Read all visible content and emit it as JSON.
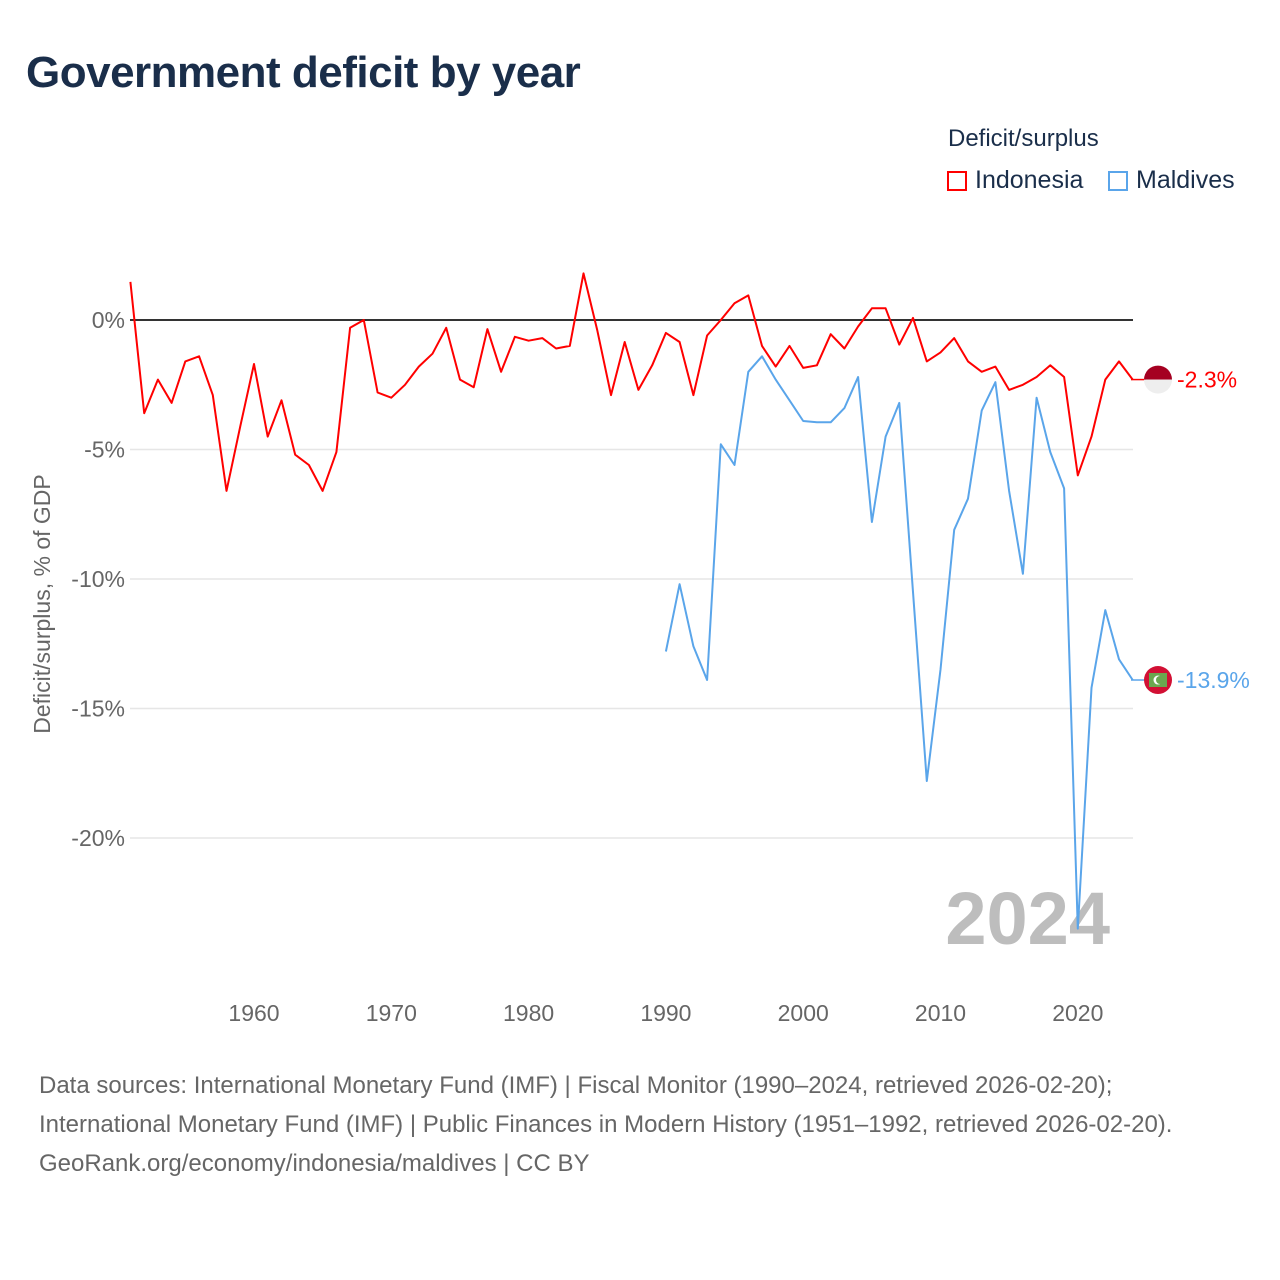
{
  "title": "Government deficit by year",
  "legend": {
    "title": "Deficit/surplus",
    "items": [
      {
        "name": "Indonesia",
        "color": "#ff0000"
      },
      {
        "name": "Maldives",
        "color": "#5aa5ea"
      }
    ]
  },
  "chart_data": {
    "type": "line",
    "title": "Government deficit by year",
    "xlabel": "",
    "ylabel": "Deficit/surplus, % of GDP",
    "xlim": [
      1951,
      2024
    ],
    "ylim": [
      -24,
      2
    ],
    "grid": true,
    "legend_placement": "top-right",
    "x_ticks": [
      1960,
      1970,
      1980,
      1990,
      2000,
      2010,
      2020
    ],
    "y_ticks": [
      {
        "v": 0,
        "label": "0%"
      },
      {
        "v": -5,
        "label": "-5%"
      },
      {
        "v": -10,
        "label": "-10%"
      },
      {
        "v": -15,
        "label": "-15%"
      },
      {
        "v": -20,
        "label": "-20%"
      }
    ],
    "year_watermark": "2024",
    "series": [
      {
        "name": "Indonesia",
        "color": "#ff0000",
        "end_label": "-2.3%",
        "start_year": 1951,
        "values": [
          1.47,
          -3.6,
          -2.3,
          -3.2,
          -1.6,
          -1.4,
          -2.9,
          -6.6,
          -4.1,
          -1.7,
          -4.5,
          -3.1,
          -5.2,
          -5.6,
          -6.6,
          -5.1,
          -0.3,
          0,
          -2.8,
          -3.0,
          -2.5,
          -1.8,
          -1.3,
          -0.3,
          -2.3,
          -2.6,
          -0.35,
          -2.0,
          -0.65,
          -0.8,
          -0.7,
          -1.1,
          -1.0,
          1.8,
          -0.4,
          -2.9,
          -0.85,
          -2.7,
          -1.75,
          -0.5,
          -0.85,
          -2.9,
          -0.6,
          0.0,
          0.65,
          0.95,
          -1.0,
          -1.8,
          -1.0,
          -1.85,
          -1.75,
          -0.55,
          -1.1,
          -0.25,
          0.45,
          0.45,
          -0.95,
          0.08,
          -1.6,
          -1.25,
          -0.7,
          -1.6,
          -2.0,
          -1.8,
          -2.7,
          -2.5,
          -2.2,
          -1.75,
          -2.2,
          -6.0,
          -4.5,
          -2.3,
          -1.6,
          -2.3
        ]
      },
      {
        "name": "Maldives",
        "color": "#5aa5ea",
        "end_label": "-13.9%",
        "start_year": 1990,
        "values": [
          -12.8,
          -10.2,
          -12.6,
          -13.9,
          -4.8,
          -5.6,
          -2.0,
          -1.4,
          -2.3,
          -3.1,
          -3.9,
          -3.95,
          -3.95,
          -3.4,
          -2.2,
          -7.8,
          -4.5,
          -3.2,
          -10.5,
          -17.8,
          -13.5,
          -8.1,
          -6.9,
          -3.5,
          -2.4,
          -6.6,
          -9.8,
          -3.0,
          -5.1,
          -6.5,
          -23.5,
          -14.2,
          -11.2,
          -13.1,
          -13.9
        ]
      }
    ]
  },
  "footer": {
    "sources": "Data sources: International Monetary Fund (IMF) | Fiscal Monitor (1990–2024, retrieved 2026-02-20); International Monetary Fund (IMF) | Public Finances in Modern History (1951–1992, retrieved 2026-02-20).",
    "credit": "GeoRank.org/economy/indonesia/maldives | CC BY"
  }
}
